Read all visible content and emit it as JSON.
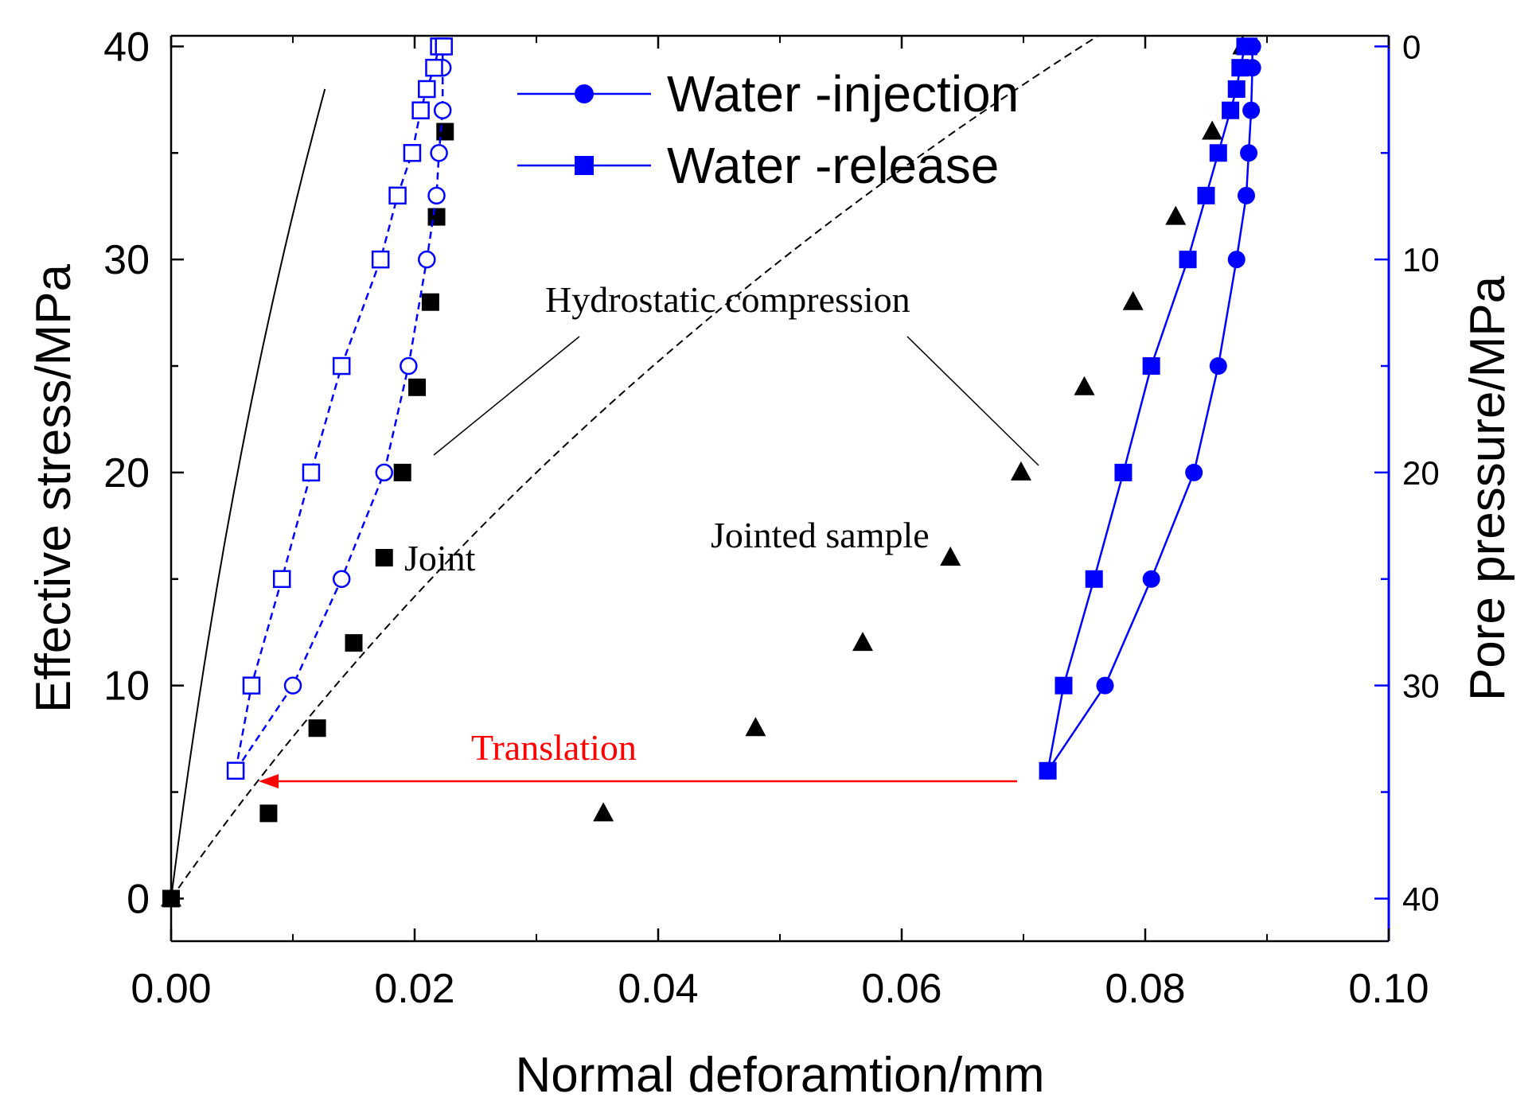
{
  "chart_data": {
    "type": "line",
    "xlabel": "Normal deforamtion/mm",
    "ylabel": "Effective stress/MPa",
    "ylabel_right": "Pore pressure/MPa",
    "xlim": [
      0,
      0.1
    ],
    "ylim": [
      -2,
      40.5
    ],
    "ylim_right_inverted": [
      0,
      40
    ],
    "x_ticks": [
      "0.00",
      "0.02",
      "0.04",
      "0.06",
      "0.08",
      "0.10"
    ],
    "y_ticks": [
      "0",
      "10",
      "20",
      "30",
      "40"
    ],
    "y_right_ticks": [
      "0",
      "10",
      "20",
      "30",
      "40"
    ],
    "legend": [
      {
        "label": "Water -injection",
        "marker": "circle",
        "color": "#0000ff"
      },
      {
        "label": "Water -release",
        "marker": "square",
        "color": "#0000ff"
      }
    ],
    "annotations": {
      "hydrostatic": "Hydrostatic compression",
      "joint": "Joint",
      "jointed_sample": "Jointed sample",
      "translation": "Translation"
    },
    "series": [
      {
        "name": "Joint (hydrostatic compression)",
        "marker": "filled-square",
        "color": "#000000",
        "x": [
          0.0,
          0.008,
          0.012,
          0.015,
          0.0175,
          0.019,
          0.0202,
          0.0213,
          0.0218,
          0.0225
        ],
        "y": [
          0,
          4,
          8,
          12,
          16,
          20,
          24,
          28,
          32,
          36
        ]
      },
      {
        "name": "Jointed sample (hydrostatic compression)",
        "marker": "filled-triangle",
        "color": "#000000",
        "x": [
          0.0,
          0.0355,
          0.048,
          0.0568,
          0.064,
          0.0698,
          0.075,
          0.079,
          0.0825,
          0.0855,
          0.088
        ],
        "y": [
          0,
          4,
          8,
          12,
          16,
          20,
          24,
          28,
          32,
          36,
          40
        ]
      },
      {
        "name": "Water -injection",
        "marker": "filled-circle",
        "color": "#0000ff",
        "x": [
          0.072,
          0.0767,
          0.0805,
          0.084,
          0.086,
          0.0875,
          0.0883,
          0.0885,
          0.0887,
          0.0888,
          0.0888
        ],
        "y": [
          6,
          10,
          15,
          20,
          25,
          30,
          33,
          35,
          37,
          39,
          40
        ]
      },
      {
        "name": "Water -release",
        "marker": "filled-square",
        "color": "#0000ff",
        "x": [
          0.072,
          0.0733,
          0.0758,
          0.0782,
          0.0805,
          0.0835,
          0.085,
          0.086,
          0.087,
          0.0875,
          0.0878,
          0.0882,
          0.0885
        ],
        "y": [
          6,
          10,
          15,
          20,
          25,
          30,
          33,
          35,
          37,
          38,
          39,
          40,
          40
        ]
      },
      {
        "name": "Water -injection (translated)",
        "marker": "open-circle",
        "color": "#0000ff",
        "x": [
          0.0053,
          0.01,
          0.014,
          0.0175,
          0.0195,
          0.021,
          0.0218,
          0.022,
          0.0223,
          0.0223,
          0.0223
        ],
        "y": [
          6,
          10,
          15,
          20,
          25,
          30,
          33,
          35,
          37,
          39,
          40
        ]
      },
      {
        "name": "Water -release (translated)",
        "marker": "open-square",
        "color": "#0000ff",
        "x": [
          0.0053,
          0.0066,
          0.0091,
          0.0115,
          0.014,
          0.0172,
          0.0186,
          0.0198,
          0.0205,
          0.021,
          0.0216,
          0.022,
          0.0224
        ],
        "y": [
          6,
          10,
          15,
          20,
          25,
          30,
          33,
          35,
          37,
          38,
          39,
          40,
          40
        ]
      }
    ]
  }
}
